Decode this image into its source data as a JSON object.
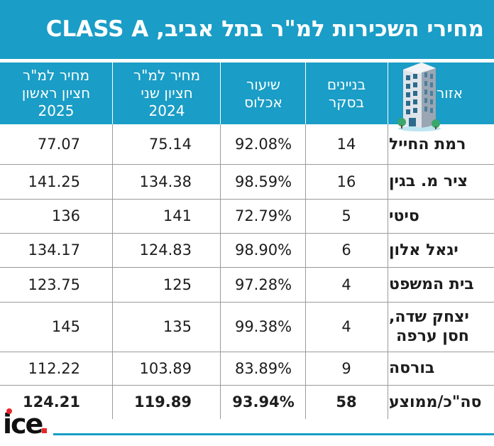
{
  "title": "מחירי השכירות למ\"ר בתל אביב, CLASS A",
  "logo_text": "ice",
  "colors": {
    "accent": "#1a9dc6",
    "logo_dot": "#e8262b"
  },
  "icon": "office-building-icon",
  "headers": {
    "area": "אזור",
    "buildings": "בניינים\nבסקר",
    "occupancy": "שיעור\nאכלוס",
    "price_h2_2024": "מחיר למ\"ר\nחציון שני\n2024",
    "price_h1_2025": "מחיר למ\"ר\nחציון ראשון\n2025"
  },
  "chart_data": {
    "type": "table",
    "title": "מחירי השכירות למ\"ר בתל אביב, CLASS A",
    "columns": [
      "אזור",
      "בניינים בסקר",
      "שיעור אכלוס",
      "מחיר למ\"ר חציון שני 2024",
      "מחיר למ\"ר חציון ראשון 2025"
    ],
    "rows": [
      {
        "area": "רמת החייל",
        "buildings": "14",
        "occupancy": "92.08%",
        "price_h2_2024": "75.14",
        "price_h1_2025": "77.07"
      },
      {
        "area": "ציר מ. בגין",
        "buildings": "16",
        "occupancy": "98.59%",
        "price_h2_2024": "134.38",
        "price_h1_2025": "141.25"
      },
      {
        "area": "סיטי",
        "buildings": "5",
        "occupancy": "72.79%",
        "price_h2_2024": "141",
        "price_h1_2025": "136"
      },
      {
        "area": "יגאל אלון",
        "buildings": "6",
        "occupancy": "98.90%",
        "price_h2_2024": "124.83",
        "price_h1_2025": "134.17"
      },
      {
        "area": "בית המשפט",
        "buildings": "4",
        "occupancy": "97.28%",
        "price_h2_2024": "125",
        "price_h1_2025": "123.75"
      },
      {
        "area": "יצחק שדה,\nחסן ערפה",
        "buildings": "4",
        "occupancy": "99.38%",
        "price_h2_2024": "135",
        "price_h1_2025": "145"
      },
      {
        "area": "בורסה",
        "buildings": "9",
        "occupancy": "83.89%",
        "price_h2_2024": "103.89",
        "price_h1_2025": "112.22"
      }
    ],
    "total": {
      "area": "סה\"כ/ממוצע",
      "buildings": "58",
      "occupancy": "93.94%",
      "price_h2_2024": "119.89",
      "price_h1_2025": "124.21"
    }
  }
}
